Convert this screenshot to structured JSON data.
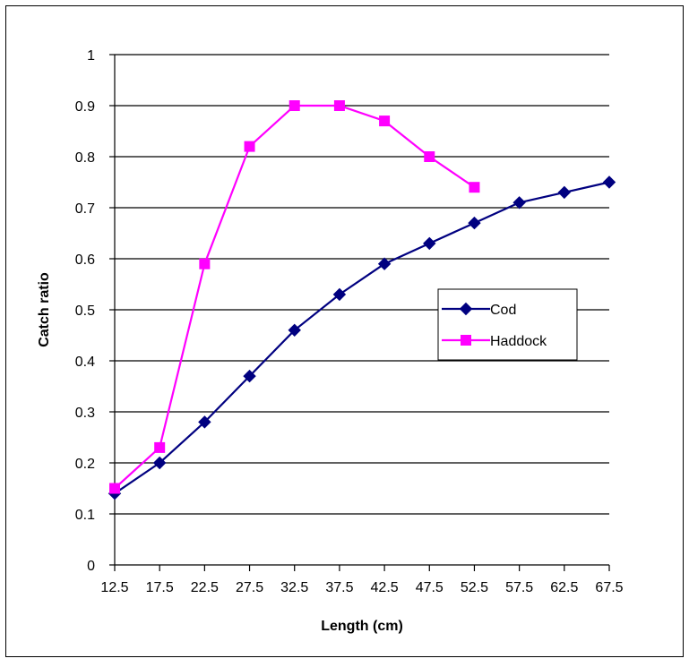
{
  "chart_data": {
    "type": "line",
    "title": "",
    "xlabel": "Length (cm)",
    "ylabel": "Catch ratio",
    "categories": [
      "12.5",
      "17.5",
      "22.5",
      "27.5",
      "32.5",
      "37.5",
      "42.5",
      "47.5",
      "52.5",
      "57.5",
      "62.5",
      "67.5"
    ],
    "y_ticks": [
      "0",
      "0.1",
      "0.2",
      "0.3",
      "0.4",
      "0.5",
      "0.6",
      "0.7",
      "0.8",
      "0.9",
      "1"
    ],
    "ylim": [
      0,
      1
    ],
    "grid": "horizontal",
    "legend_position": "right",
    "series": [
      {
        "name": "Cod",
        "color": "#000080",
        "marker": "diamond",
        "values": [
          0.14,
          0.2,
          0.28,
          0.37,
          0.46,
          0.53,
          0.59,
          0.63,
          0.67,
          0.71,
          0.73,
          0.75
        ]
      },
      {
        "name": "Haddock",
        "color": "#ff00ff",
        "marker": "square",
        "values": [
          0.15,
          0.23,
          0.59,
          0.82,
          0.9,
          0.9,
          0.87,
          0.8,
          0.74,
          null,
          null,
          null
        ]
      }
    ]
  }
}
